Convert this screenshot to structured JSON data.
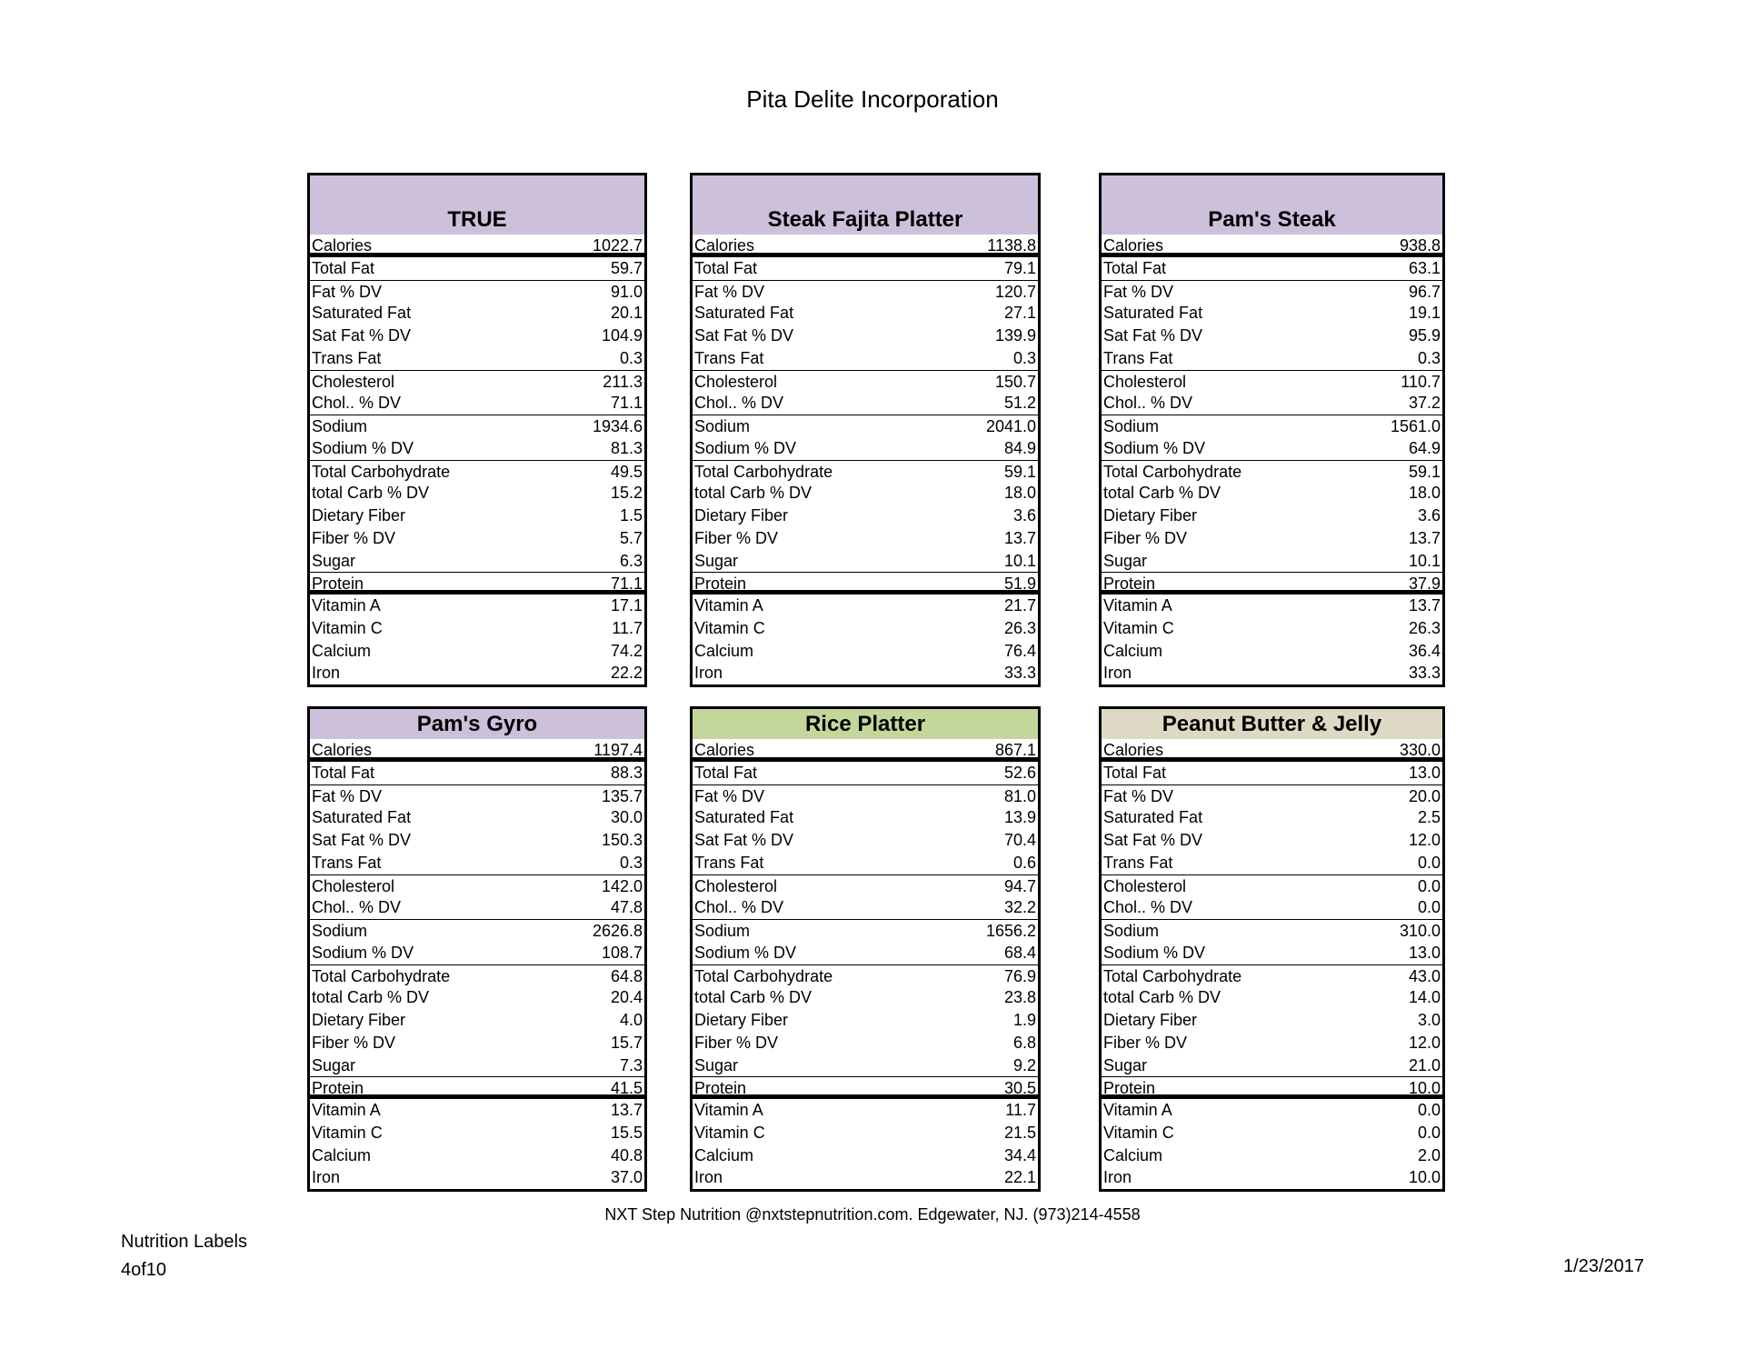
{
  "title": "Pita Delite Incorporation",
  "footer": "NXT Step Nutrition @nxtstepnutrition.com. Edgewater, NJ. (973)214-4558",
  "page_label": "Nutrition Labels",
  "page_number": "4of10",
  "date": "1/23/2017",
  "nutrients": [
    "Calories",
    "Total Fat",
    "Fat % DV",
    "Saturated Fat",
    "Sat Fat % DV",
    "Trans Fat",
    "Cholesterol",
    "Chol.. % DV",
    "Sodium",
    "Sodium % DV",
    "Total Carbohydrate",
    "total  Carb % DV",
    "Dietary Fiber",
    "Fiber % DV",
    "Sugar",
    "Protein",
    "Vitamin A",
    "Vitamin C",
    "Calcium",
    "Iron"
  ],
  "panels": [
    {
      "name": "TRUE",
      "header_color": "#ccc0da",
      "values": [
        "1022.7",
        "59.7",
        "91.0",
        "20.1",
        "104.9",
        "0.3",
        "211.3",
        "71.1",
        "1934.6",
        "81.3",
        "49.5",
        "15.2",
        "1.5",
        "5.7",
        "6.3",
        "71.1",
        "17.1",
        "11.7",
        "74.2",
        "22.2"
      ]
    },
    {
      "name": "Steak Fajita Platter",
      "header_color": "#ccc0da",
      "values": [
        "1138.8",
        "79.1",
        "120.7",
        "27.1",
        "139.9",
        "0.3",
        "150.7",
        "51.2",
        "2041.0",
        "84.9",
        "59.1",
        "18.0",
        "3.6",
        "13.7",
        "10.1",
        "51.9",
        "21.7",
        "26.3",
        "76.4",
        "33.3"
      ]
    },
    {
      "name": "Pam's Steak",
      "header_color": "#ccc0da",
      "values": [
        "938.8",
        "63.1",
        "96.7",
        "19.1",
        "95.9",
        "0.3",
        "110.7",
        "37.2",
        "1561.0",
        "64.9",
        "59.1",
        "18.0",
        "3.6",
        "13.7",
        "10.1",
        "37.9",
        "13.7",
        "26.3",
        "36.4",
        "33.3"
      ]
    },
    {
      "name": "Pam's Gyro",
      "header_color": "#ccc0da",
      "values": [
        "1197.4",
        "88.3",
        "135.7",
        "30.0",
        "150.3",
        "0.3",
        "142.0",
        "47.8",
        "2626.8",
        "108.7",
        "64.8",
        "20.4",
        "4.0",
        "15.7",
        "7.3",
        "41.5",
        "13.7",
        "15.5",
        "40.8",
        "37.0"
      ]
    },
    {
      "name": "Rice Platter",
      "header_color": "#c4d79b",
      "values": [
        "867.1",
        "52.6",
        "81.0",
        "13.9",
        "70.4",
        "0.6",
        "94.7",
        "32.2",
        "1656.2",
        "68.4",
        "76.9",
        "23.8",
        "1.9",
        "6.8",
        "9.2",
        "30.5",
        "11.7",
        "21.5",
        "34.4",
        "22.1"
      ]
    },
    {
      "name": "Peanut Butter & Jelly",
      "header_color": "#ddd9c4",
      "values": [
        "330.0",
        "13.0",
        "20.0",
        "2.5",
        "12.0",
        "0.0",
        "0.0",
        "0.0",
        "310.0",
        "13.0",
        "43.0",
        "14.0",
        "3.0",
        "12.0",
        "21.0",
        "10.0",
        "0.0",
        "0.0",
        "2.0",
        "10.0"
      ]
    }
  ]
}
